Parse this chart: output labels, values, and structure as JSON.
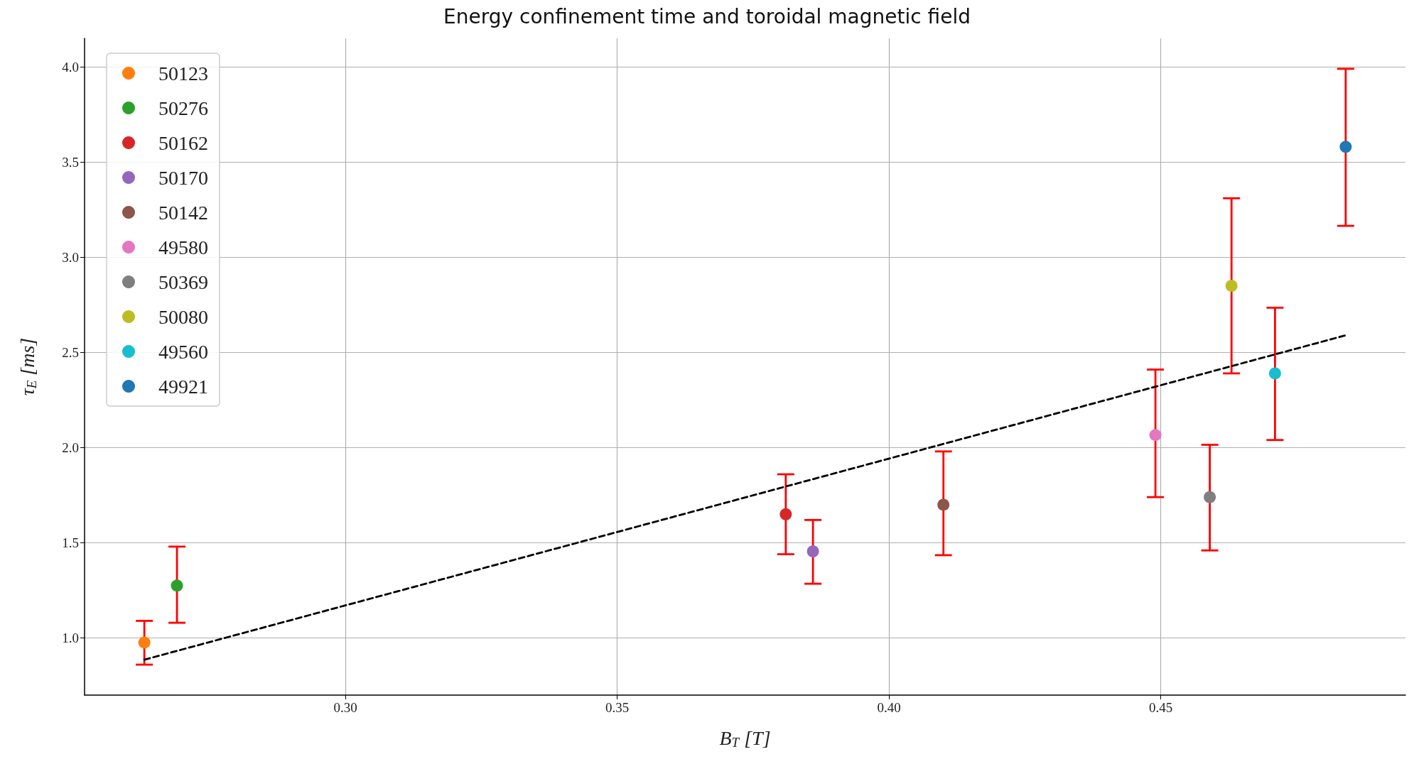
{
  "chart_data": {
    "type": "scatter",
    "title": "Energy confinement time and toroidal magnetic field",
    "xlabel": "B$_{T}$ [T]",
    "ylabel": "τ$_{E}$ [ms]",
    "xlim": [
      0.252,
      0.495
    ],
    "ylim": [
      0.7,
      4.15
    ],
    "xticks": [
      {
        "value": 0.3,
        "label": "0.30"
      },
      {
        "value": 0.35,
        "label": "0.35"
      },
      {
        "value": 0.4,
        "label": "0.40"
      },
      {
        "value": 0.45,
        "label": "0.45"
      }
    ],
    "yticks": [
      {
        "value": 1,
        "label": "1.0"
      },
      {
        "value": 1.5,
        "label": "1.5"
      },
      {
        "value": 2,
        "label": "2.0"
      },
      {
        "value": 2.5,
        "label": "2.5"
      },
      {
        "value": 3,
        "label": "3.0"
      },
      {
        "value": 3.5,
        "label": "3.5"
      },
      {
        "value": 4,
        "label": "4.0"
      }
    ],
    "grid": true,
    "legend": "top left",
    "marker": "circle",
    "series": [
      {
        "name": "50123",
        "color": "#ff7f0e",
        "x": [
          0.263
        ],
        "values": [
          0.976
        ],
        "errors": [
          [
            0.86,
            1.09
          ]
        ]
      },
      {
        "name": "50276",
        "color": "#2ca02c",
        "x": [
          0.269
        ],
        "values": [
          1.275
        ],
        "errors": [
          [
            1.08,
            1.48
          ]
        ]
      },
      {
        "name": "50162",
        "color": "#d62728",
        "x": [
          0.381
        ],
        "values": [
          1.65
        ],
        "errors": [
          [
            1.44,
            1.86
          ]
        ]
      },
      {
        "name": "50170",
        "color": "#9467bd",
        "x": [
          0.386
        ],
        "values": [
          1.455
        ],
        "errors": [
          [
            1.285,
            1.62
          ]
        ]
      },
      {
        "name": "50142",
        "color": "#8c564b",
        "x": [
          0.41
        ],
        "values": [
          1.7
        ],
        "errors": [
          [
            1.435,
            1.98
          ]
        ]
      },
      {
        "name": "49580",
        "color": "#e377c2",
        "x": [
          0.449
        ],
        "values": [
          2.066
        ],
        "errors": [
          [
            1.74,
            2.41
          ]
        ]
      },
      {
        "name": "50369",
        "color": "#7f7f7f",
        "x": [
          0.459
        ],
        "values": [
          1.74
        ],
        "errors": [
          [
            1.46,
            2.015
          ]
        ]
      },
      {
        "name": "50080",
        "color": "#bcbd22",
        "x": [
          0.463
        ],
        "values": [
          2.85
        ],
        "errors": [
          [
            2.39,
            3.31
          ]
        ]
      },
      {
        "name": "49560",
        "color": "#17becf",
        "x": [
          0.471
        ],
        "values": [
          2.39
        ],
        "errors": [
          [
            2.04,
            2.735
          ]
        ]
      },
      {
        "name": "49921",
        "color": "#1f77b4",
        "x": [
          0.484
        ],
        "values": [
          3.58
        ],
        "errors": [
          [
            3.165,
            3.99
          ]
        ]
      },
      {
        "type": "line",
        "color": "#000000",
        "line_style": "dashed",
        "marker": "none",
        "x": [
          0.263,
          0.484
        ],
        "values": [
          0.886,
          2.59
        ]
      }
    ]
  }
}
